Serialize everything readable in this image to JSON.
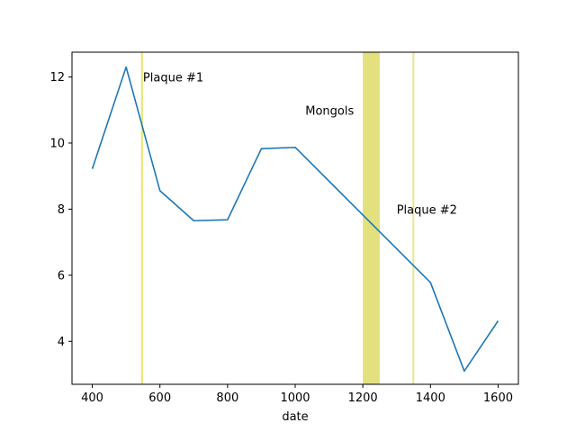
{
  "chart_data": {
    "type": "line",
    "title": "",
    "xlabel": "date",
    "ylabel": "",
    "xlim": [
      340,
      1660
    ],
    "ylim": [
      2.7,
      12.75
    ],
    "grid": false,
    "legend": "none",
    "x_ticks": [
      400,
      600,
      800,
      1000,
      1200,
      1400,
      1600
    ],
    "y_ticks": [
      4,
      6,
      8,
      10,
      12
    ],
    "series": [
      {
        "color": "#1f77b4",
        "x": [
          400,
          500,
          600,
          700,
          800,
          900,
          1000,
          1400,
          1500,
          1600
        ],
        "y": [
          9.22,
          12.3,
          8.56,
          7.65,
          7.68,
          9.83,
          9.87,
          5.78,
          3.1,
          4.62
        ]
      }
    ],
    "spans": [
      {
        "x0": 544,
        "x1": 550,
        "color": "#d4d000"
      },
      {
        "x0": 1200,
        "x1": 1250,
        "color": "#c8c200"
      },
      {
        "x0": 1347,
        "x1": 1352,
        "color": "#d4d000"
      }
    ],
    "annotations": [
      {
        "text": "Plaque #1",
        "x": 550,
        "y": 12.0
      },
      {
        "text": "Mongols",
        "x": 1030,
        "y": 11.0
      },
      {
        "text": "Plaque #2",
        "x": 1300,
        "y": 8.0
      }
    ]
  }
}
